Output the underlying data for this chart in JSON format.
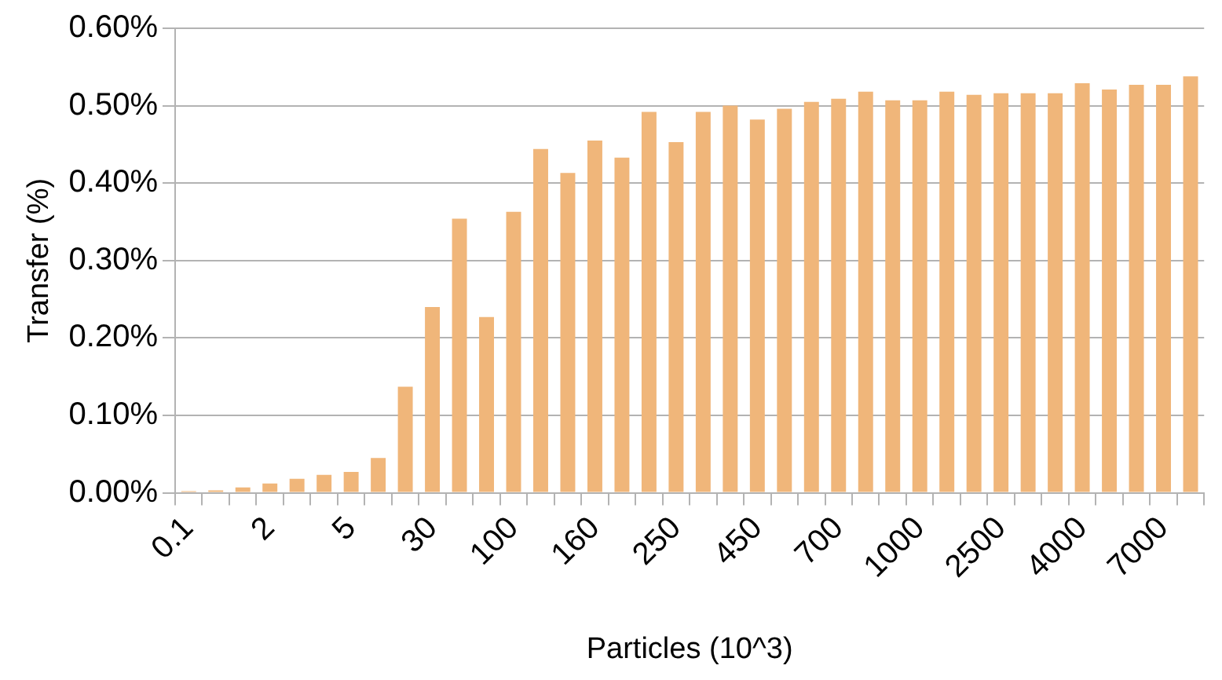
{
  "chart_data": {
    "type": "bar",
    "xlabel": "Particles (10^3)",
    "ylabel": "Transfer (%)",
    "categories": [
      "0.1",
      null,
      null,
      "2",
      null,
      null,
      "5",
      null,
      null,
      "30",
      null,
      null,
      "100",
      null,
      null,
      "160",
      null,
      null,
      "250",
      null,
      null,
      "450",
      null,
      null,
      "700",
      null,
      null,
      "1000",
      null,
      null,
      "2500",
      null,
      null,
      "4000",
      null,
      null,
      "7000",
      null
    ],
    "values": [
      0.002,
      0.003,
      0.007,
      0.012,
      0.018,
      0.023,
      0.027,
      0.045,
      0.137,
      0.24,
      0.354,
      0.227,
      0.363,
      0.444,
      0.413,
      0.455,
      0.433,
      0.492,
      0.453,
      0.492,
      0.5,
      0.482,
      0.496,
      0.505,
      0.509,
      0.518,
      0.507,
      0.507,
      0.518,
      0.514,
      0.516,
      0.516,
      0.516,
      0.529,
      0.521,
      0.527,
      0.527,
      0.538
    ],
    "color": "#f0b67a",
    "ylim": [
      0,
      0.6
    ],
    "yticks": [
      {
        "value": 0,
        "label": "0.00%"
      },
      {
        "value": 0.1,
        "label": "0.10%"
      },
      {
        "value": 0.2,
        "label": "0.20%"
      },
      {
        "value": 0.3,
        "label": "0.30%"
      },
      {
        "value": 0.4,
        "label": "0.40%"
      },
      {
        "value": 0.5,
        "label": "0.50%"
      },
      {
        "value": 0.6,
        "label": "0.60%"
      }
    ],
    "grid": "y",
    "legend": false
  }
}
